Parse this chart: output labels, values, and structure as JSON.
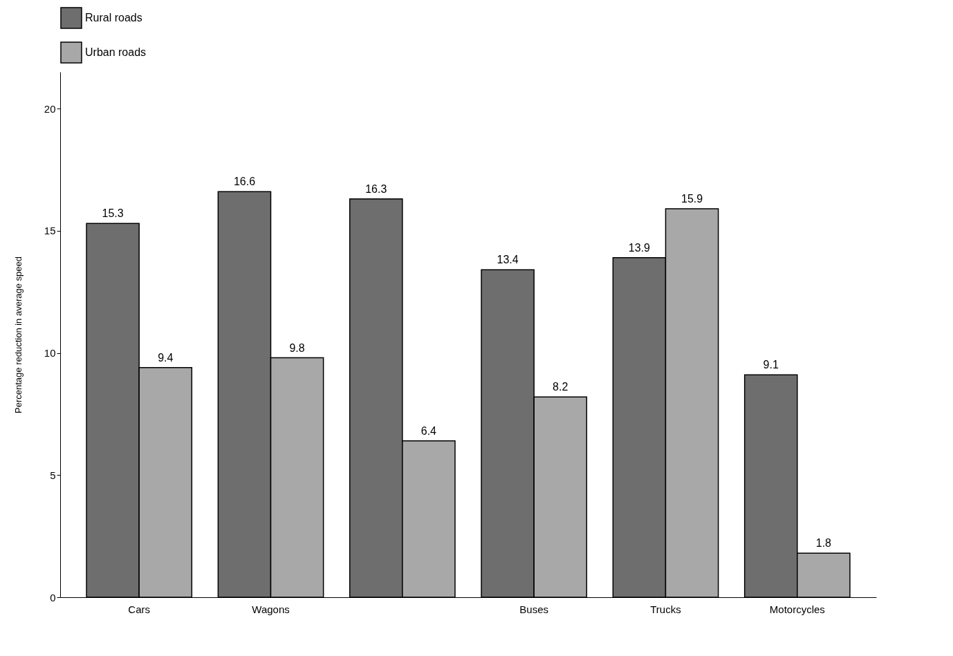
{
  "chart_data": {
    "type": "bar",
    "ylabel": "Percentage reduction in average speed",
    "categories": [
      "Cars",
      "Wagons",
      null,
      "Buses",
      "Trucks",
      "Motorcycles"
    ],
    "series": [
      {
        "name": "Rural roads",
        "color": "#6e6e6e",
        "values": [
          15.3,
          16.6,
          16.3,
          13.4,
          13.9,
          9.1
        ]
      },
      {
        "name": "Urban roads",
        "color": "#a8a8a8",
        "values": [
          9.4,
          9.8,
          6.4,
          8.2,
          15.9,
          1.8
        ]
      }
    ],
    "ylim": [
      0,
      21.5
    ],
    "yticks": [
      0,
      5,
      10,
      15,
      20
    ],
    "data_labels": true,
    "grid": false,
    "legend": "top"
  }
}
